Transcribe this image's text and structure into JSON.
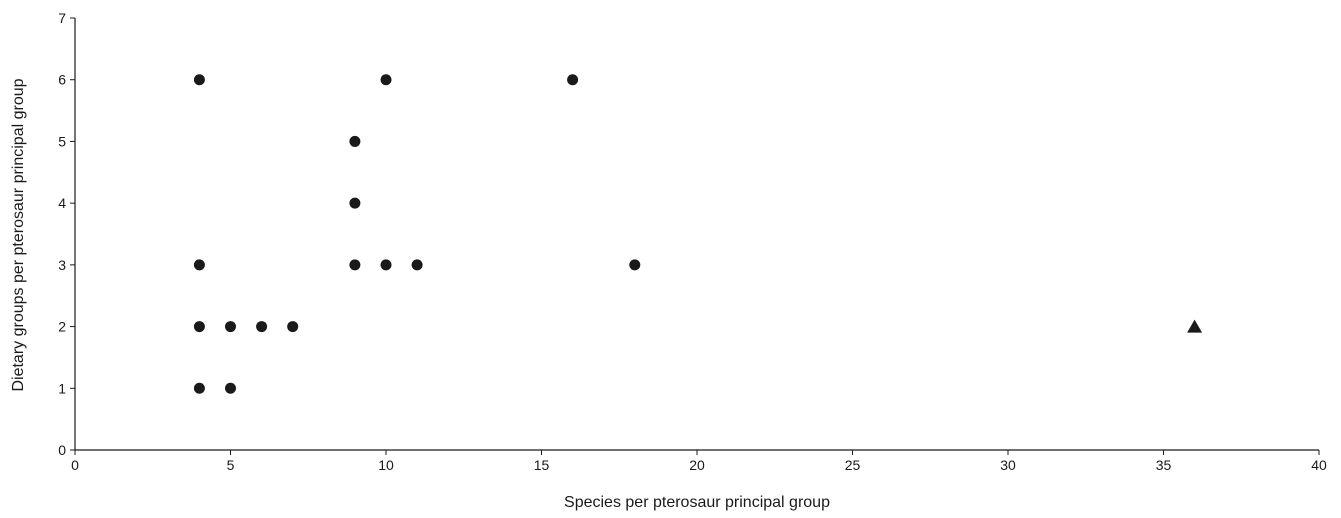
{
  "chart_data": {
    "type": "scatter",
    "xlabel": "Species per pterosaur principal group",
    "ylabel": "Dietary groups per pterosaur principal group",
    "xlim": [
      0,
      40
    ],
    "ylim": [
      0,
      7
    ],
    "x_ticks": [
      0,
      5,
      10,
      15,
      20,
      25,
      30,
      35,
      40
    ],
    "y_ticks": [
      0,
      1,
      2,
      3,
      4,
      5,
      6,
      7
    ],
    "grid": false,
    "series": [
      {
        "marker": "circle",
        "points": [
          {
            "x": 4,
            "y": 6
          },
          {
            "x": 10,
            "y": 6
          },
          {
            "x": 16,
            "y": 6
          },
          {
            "x": 9,
            "y": 5
          },
          {
            "x": 9,
            "y": 4
          },
          {
            "x": 4,
            "y": 3
          },
          {
            "x": 9,
            "y": 3
          },
          {
            "x": 10,
            "y": 3
          },
          {
            "x": 11,
            "y": 3
          },
          {
            "x": 18,
            "y": 3
          },
          {
            "x": 4,
            "y": 2
          },
          {
            "x": 5,
            "y": 2
          },
          {
            "x": 6,
            "y": 2
          },
          {
            "x": 7,
            "y": 2
          },
          {
            "x": 4,
            "y": 1
          },
          {
            "x": 5,
            "y": 1
          }
        ]
      },
      {
        "marker": "triangle",
        "points": [
          {
            "x": 36,
            "y": 2
          }
        ]
      }
    ]
  }
}
